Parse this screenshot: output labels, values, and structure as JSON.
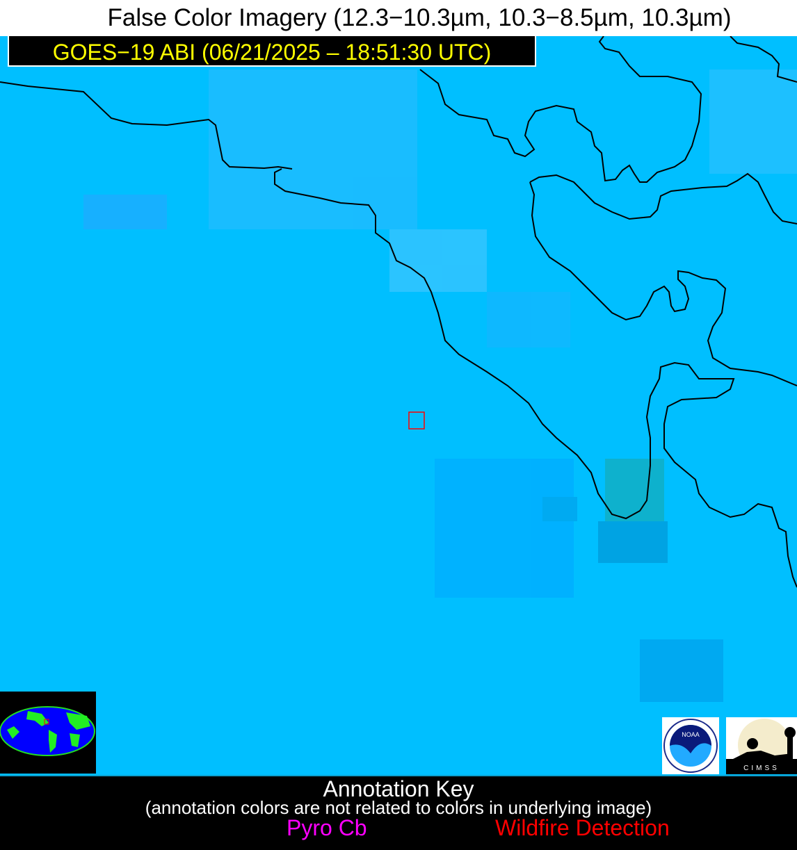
{
  "header": {
    "title": "False Color Imagery (12.3−10.3µm, 10.3−8.5µm, 10.3µm)",
    "satellite_label": "GOES−19 ABI (06/21/2025 – 18:51:30 UTC)"
  },
  "map": {
    "background_color": "#00bfff",
    "coastline_color": "#000000",
    "detection_box_color": "#ff0000",
    "inset": "globe-locator",
    "logos": [
      "NOAA",
      "CIMSS"
    ]
  },
  "annotation_key": {
    "title": "Annotation Key",
    "note": "(annotation colors are not related to colors in underlying image)",
    "pyro_cb": {
      "label": "Pyro Cb",
      "color": "#ff00ff"
    },
    "wildfire": {
      "label": "Wildfire Detection",
      "color": "#ff0000"
    }
  }
}
